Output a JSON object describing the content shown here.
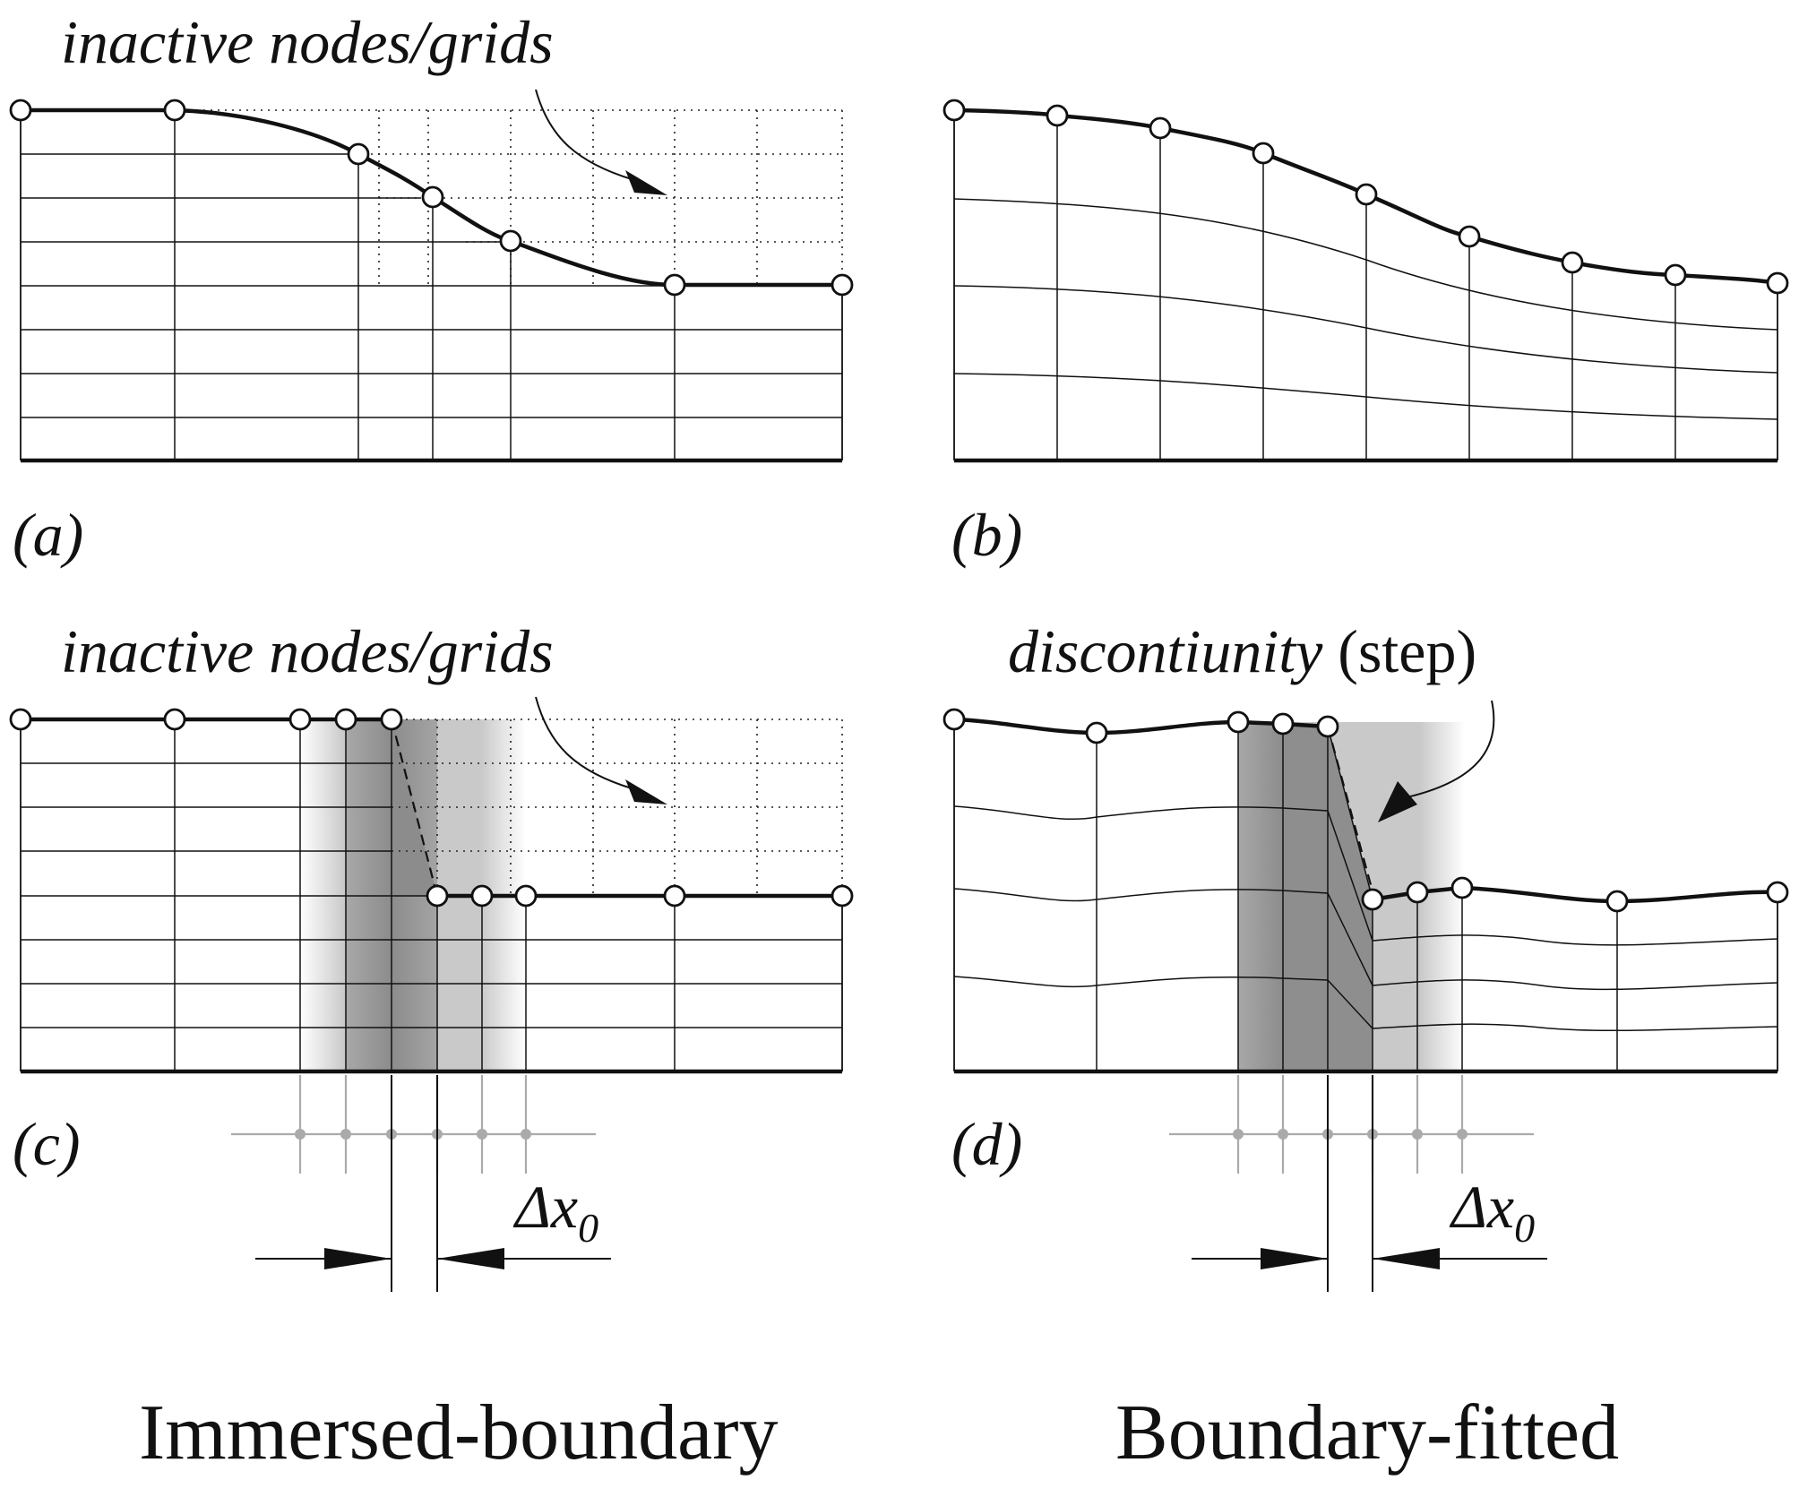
{
  "panels": {
    "a": {
      "label": "(a)",
      "annotation": "inactive nodes/grids"
    },
    "b": {
      "label": "(b)"
    },
    "c": {
      "label": "(c)",
      "annotation": "inactive nodes/grids",
      "dimension_label": "Δx",
      "dimension_subscript": "0"
    },
    "d": {
      "label": "(d)",
      "annotation_main": "discontiunity",
      "annotation_paren": "(step)",
      "dimension_label": "Δx",
      "dimension_subscript": "0"
    }
  },
  "captions": {
    "left": "Immersed-boundary",
    "right": "Boundary-fitted"
  }
}
